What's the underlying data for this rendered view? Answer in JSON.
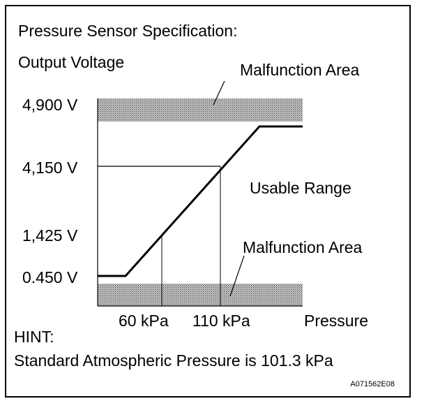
{
  "title": "Pressure Sensor Specification:",
  "y_axis_label": "Output Voltage",
  "x_axis_label": "Pressure",
  "y_ticks": [
    "4,900 V",
    "4,150 V",
    "1,425 V",
    "0.450 V"
  ],
  "x_ticks": [
    "60 kPa",
    "110 kPa"
  ],
  "regions": {
    "malfunction_upper": "Malfunction Area",
    "usable": "Usable Range",
    "malfunction_lower": "Malfunction Area"
  },
  "hint": {
    "heading": "HINT:",
    "text": "Standard Atmospheric Pressure is 101.3 kPa"
  },
  "figure_id": "A071562E08",
  "colors": {
    "line": "#000000",
    "hatch_bg": "#c8c8c8",
    "hatch_dot": "#555555"
  }
}
